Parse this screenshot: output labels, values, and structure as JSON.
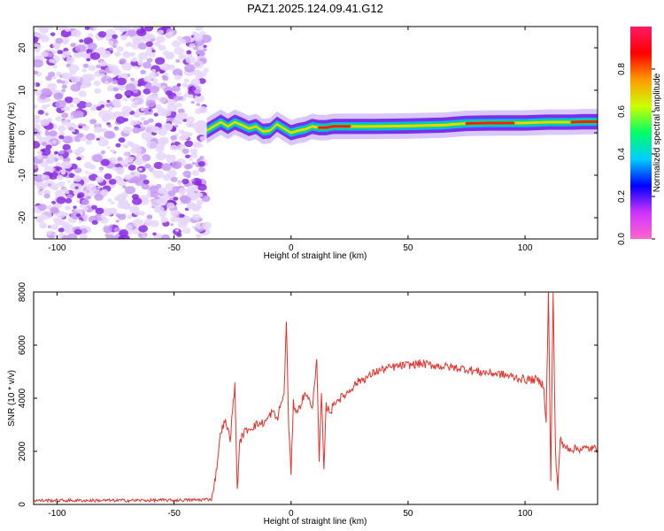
{
  "figure": {
    "title": "PAZ1.2025.124.09.41.G12"
  },
  "colormap": {
    "stops": [
      "#ff66cc",
      "#cc33ff",
      "#0000ff",
      "#00ccff",
      "#00ff66",
      "#ccff00",
      "#ff9900",
      "#ff0000",
      "#ff1a66"
    ]
  },
  "chart_data": [
    {
      "type": "heatmap",
      "xlabel": "Height of straight line (km)",
      "ylabel": "Frequency (Hz)",
      "xlim": [
        -110,
        131
      ],
      "ylim": [
        -25,
        25
      ],
      "xticks": [
        -100,
        -50,
        0,
        50,
        100
      ],
      "yticks": [
        -20,
        -10,
        0,
        10,
        20
      ],
      "noise_region": [
        -110,
        -36
      ],
      "ridge": {
        "x": [
          -36,
          -33,
          -30,
          -27,
          -24,
          -21,
          -18,
          -15,
          -12,
          -9,
          -6,
          -3,
          0,
          3,
          6,
          9,
          12,
          15,
          18,
          25,
          35,
          50,
          65,
          75,
          85,
          95,
          100,
          105,
          110,
          115,
          120,
          125,
          131
        ],
        "freq": [
          0.5,
          1.5,
          2.5,
          1.5,
          2.5,
          1.8,
          1.0,
          1.5,
          0.3,
          0.5,
          2.0,
          1.0,
          0.0,
          0.5,
          0.8,
          1.5,
          1.2,
          1.2,
          1.5,
          1.5,
          1.5,
          1.6,
          1.8,
          2.2,
          2.3,
          2.3,
          2.3,
          2.4,
          2.5,
          2.5,
          2.5,
          2.6,
          2.6
        ]
      },
      "colorbar": {
        "label": "Normalized spectral amplitude",
        "range": [
          0.0,
          1.0
        ],
        "ticks": [
          "0.0",
          "0.2",
          "0.4",
          "0.6",
          "0.8"
        ]
      }
    },
    {
      "type": "line",
      "xlabel": "Height of straight line (km)",
      "ylabel": "SNR (10 * v/v)",
      "xlim": [
        -110,
        131
      ],
      "ylim": [
        0,
        8000
      ],
      "xticks": [
        -100,
        -50,
        0,
        50,
        100
      ],
      "yticks": [
        0,
        2000,
        4000,
        6000,
        8000
      ],
      "color": "#e8302a",
      "series": [
        {
          "x": [
            -110,
            -90,
            -70,
            -50,
            -40,
            -34,
            -32,
            -30,
            -28,
            -26,
            -24,
            -23,
            -22,
            -21,
            -19,
            -15,
            -11,
            -8,
            -6,
            -4,
            -3,
            -2,
            -1,
            0,
            1,
            2,
            3,
            5,
            7,
            9,
            11,
            12,
            13,
            14,
            15,
            17,
            19,
            21,
            24,
            27,
            30,
            33,
            36,
            40,
            45,
            50,
            55,
            60,
            65,
            70,
            75,
            80,
            85,
            90,
            95,
            100,
            105,
            108,
            109,
            110,
            111,
            112,
            113,
            114,
            115,
            116,
            118,
            120,
            125,
            131
          ],
          "y": [
            150,
            150,
            150,
            160,
            170,
            200,
            1200,
            2800,
            3100,
            2500,
            4500,
            500,
            2200,
            2600,
            2800,
            3000,
            3100,
            3500,
            3200,
            3900,
            4100,
            6900,
            3000,
            1100,
            3800,
            3600,
            3500,
            4000,
            4200,
            3500,
            5600,
            1500,
            4200,
            1200,
            3700,
            3500,
            3900,
            4000,
            4200,
            4500,
            4700,
            4800,
            5000,
            5100,
            5200,
            5250,
            5300,
            5250,
            5200,
            5150,
            5100,
            5000,
            4950,
            4900,
            4800,
            4700,
            4700,
            4500,
            3000,
            8000,
            800,
            8000,
            2000,
            600,
            2500,
            2200,
            2150,
            2100,
            2100,
            2100
          ]
        }
      ]
    }
  ]
}
